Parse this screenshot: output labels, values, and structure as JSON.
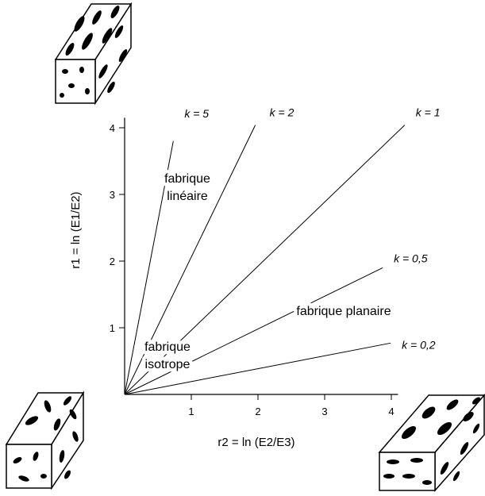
{
  "chart_data": {
    "type": "line",
    "xlabel": "r2 = ln (E2/E3)",
    "ylabel": "r1 = ln (E1/E2)",
    "xlim": [
      0,
      4.1
    ],
    "ylim": [
      0,
      4.15
    ],
    "xticks": [
      1,
      2,
      3,
      4
    ],
    "yticks": [
      1,
      2,
      3,
      4
    ],
    "series": [
      {
        "name": "k = 5",
        "color": "#000000",
        "x": [
          0,
          0.73
        ],
        "values": [
          0,
          3.8
        ]
      },
      {
        "name": "k = 2",
        "color": "#000000",
        "x": [
          0,
          1.96
        ],
        "values": [
          0,
          4.04
        ]
      },
      {
        "name": "k = 1",
        "color": "#000000",
        "x": [
          0,
          4.2
        ],
        "values": [
          0,
          4.04
        ]
      },
      {
        "name": "k = 0,5",
        "color": "#000000",
        "x": [
          0,
          3.87
        ],
        "values": [
          0,
          1.9
        ]
      },
      {
        "name": "k = 0,2",
        "color": "#000000",
        "x": [
          0,
          3.99
        ],
        "values": [
          0,
          0.77
        ]
      }
    ],
    "annotations": [
      {
        "lines": [
          "fabrique",
          "linéaire"
        ]
      },
      {
        "lines": [
          "fabrique planaire"
        ]
      },
      {
        "lines": [
          "fabrique",
          "isotrope"
        ]
      }
    ]
  }
}
